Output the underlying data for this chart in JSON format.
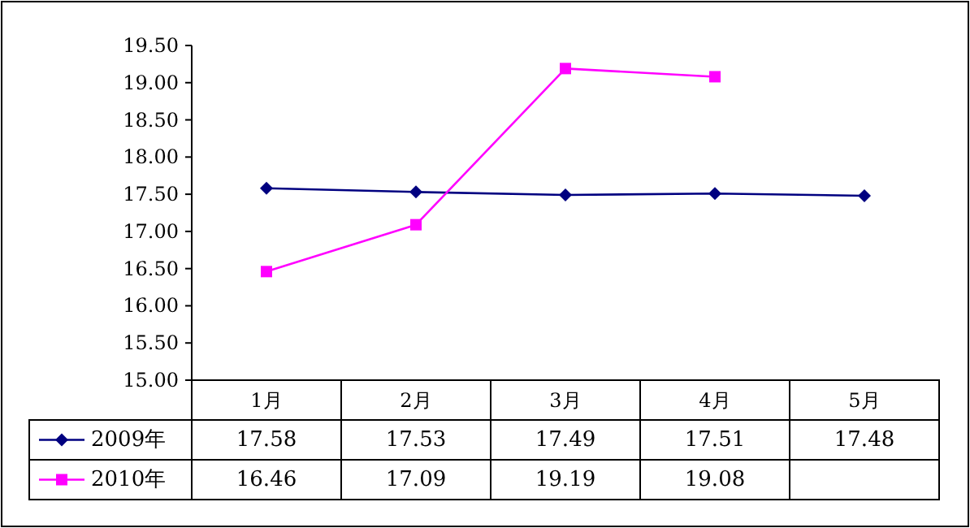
{
  "chart_data": {
    "type": "line",
    "categories": [
      "1月",
      "2月",
      "3月",
      "4月",
      "5月"
    ],
    "series": [
      {
        "name": "2009年",
        "color": "#000080",
        "marker": "diamond",
        "values": [
          17.58,
          17.53,
          17.49,
          17.51,
          17.48
        ]
      },
      {
        "name": "2010年",
        "color": "#ff00ff",
        "marker": "square",
        "values": [
          16.46,
          17.09,
          19.19,
          19.08,
          null
        ]
      }
    ],
    "ylim": [
      15,
      19.5
    ],
    "yticks": [
      {
        "value": 15,
        "label": "15.00"
      },
      {
        "value": 15.5,
        "label": "15.50"
      },
      {
        "value": 16,
        "label": "16.00"
      },
      {
        "value": 16.5,
        "label": "16.50"
      },
      {
        "value": 17,
        "label": "17.00"
      },
      {
        "value": 17.5,
        "label": "17.50"
      },
      {
        "value": 18,
        "label": "18.00"
      },
      {
        "value": 18.5,
        "label": "18.50"
      },
      {
        "value": 19,
        "label": "19.00"
      },
      {
        "value": 19.5,
        "label": "19.50"
      }
    ],
    "data_labels": true,
    "legend": "bottom left"
  }
}
